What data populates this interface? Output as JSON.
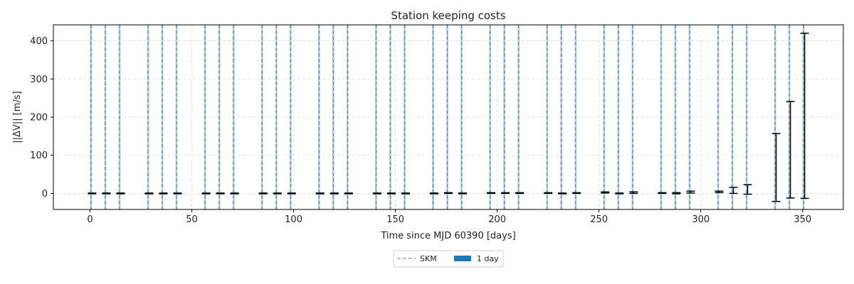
{
  "chart_data": {
    "type": "errorbar",
    "title": "Station keeping costs",
    "xlabel": "Time since MJD 60390 [days]",
    "ylabel": "||ΔV|| [m/s]",
    "xlim": [
      -18,
      370
    ],
    "ylim": [
      -42,
      442
    ],
    "xticks": [
      0,
      50,
      100,
      150,
      200,
      250,
      300,
      350
    ],
    "yticks": [
      0,
      100,
      200,
      300,
      400
    ],
    "grid": true,
    "legend": {
      "placement": "below-center",
      "entries": [
        {
          "label": "SKM",
          "style": "dashed-line",
          "color": "#aaaaaa"
        },
        {
          "label": "1 day",
          "style": "patch",
          "color": "#1f77b4"
        }
      ]
    },
    "skm_times": [
      0,
      7,
      14,
      28,
      35,
      42,
      56,
      63,
      70,
      84,
      91,
      98,
      112,
      119,
      126,
      140,
      147,
      154,
      168,
      175,
      182,
      196,
      203,
      210,
      224,
      231,
      238,
      252,
      259,
      266,
      280,
      287,
      294,
      308,
      315,
      322,
      336,
      343,
      350
    ],
    "window_days": 1,
    "window_color": "#1f77b4",
    "errorbars": [
      {
        "x": 1,
        "low": -1,
        "high": 1
      },
      {
        "x": 8,
        "low": -1,
        "high": 1
      },
      {
        "x": 15,
        "low": -1,
        "high": 1
      },
      {
        "x": 29,
        "low": -1,
        "high": 1
      },
      {
        "x": 36,
        "low": -1,
        "high": 1
      },
      {
        "x": 43,
        "low": -1,
        "high": 1
      },
      {
        "x": 57,
        "low": -1,
        "high": 1
      },
      {
        "x": 64,
        "low": -1,
        "high": 1
      },
      {
        "x": 71,
        "low": -1,
        "high": 1
      },
      {
        "x": 85,
        "low": -1,
        "high": 1
      },
      {
        "x": 92,
        "low": -1,
        "high": 1
      },
      {
        "x": 99,
        "low": -1,
        "high": 1
      },
      {
        "x": 113,
        "low": -1,
        "high": 1
      },
      {
        "x": 120,
        "low": -1,
        "high": 1
      },
      {
        "x": 127,
        "low": -1,
        "high": 1
      },
      {
        "x": 141,
        "low": -1,
        "high": 1
      },
      {
        "x": 148,
        "low": -1,
        "high": 1
      },
      {
        "x": 155,
        "low": -1,
        "high": 1
      },
      {
        "x": 169,
        "low": -1,
        "high": 1
      },
      {
        "x": 176,
        "low": 0,
        "high": 2
      },
      {
        "x": 183,
        "low": -1,
        "high": 1
      },
      {
        "x": 197,
        "low": 0,
        "high": 2
      },
      {
        "x": 204,
        "low": 0,
        "high": 2
      },
      {
        "x": 211,
        "low": 0,
        "high": 2
      },
      {
        "x": 225,
        "low": 0,
        "high": 2
      },
      {
        "x": 232,
        "low": -1,
        "high": 1
      },
      {
        "x": 239,
        "low": 0,
        "high": 2
      },
      {
        "x": 253,
        "low": 1,
        "high": 4
      },
      {
        "x": 260,
        "low": -1,
        "high": 1
      },
      {
        "x": 267,
        "low": 0,
        "high": 4
      },
      {
        "x": 281,
        "low": 0,
        "high": 2
      },
      {
        "x": 288,
        "low": -1,
        "high": 2
      },
      {
        "x": 295,
        "low": 1,
        "high": 6
      },
      {
        "x": 309,
        "low": 2,
        "high": 6
      },
      {
        "x": 316,
        "low": 0,
        "high": 16
      },
      {
        "x": 323,
        "low": -2,
        "high": 23
      },
      {
        "x": 337,
        "low": -21,
        "high": 157
      },
      {
        "x": 344,
        "low": -12,
        "high": 241
      },
      {
        "x": 351,
        "low": -13,
        "high": 420
      }
    ]
  }
}
